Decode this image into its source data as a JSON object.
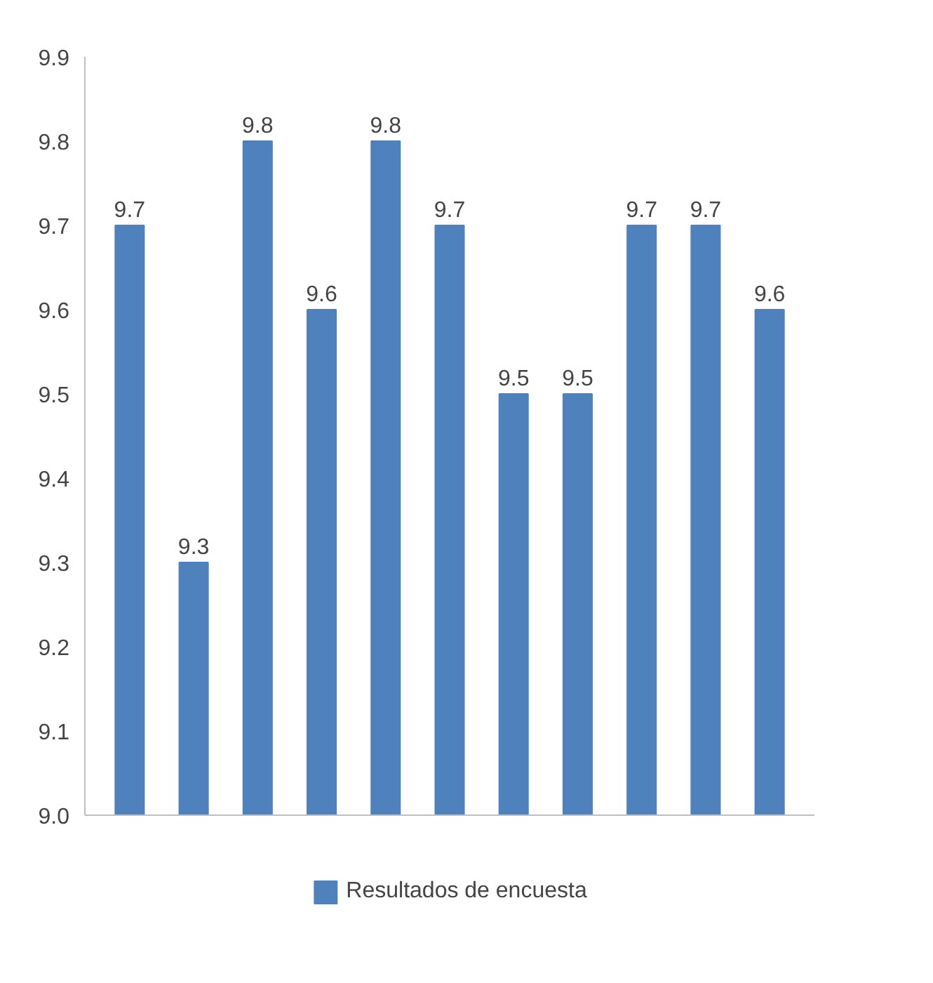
{
  "chart_data": {
    "type": "bar",
    "categories": [
      null,
      null,
      null,
      null,
      null,
      null,
      null,
      null,
      null,
      null,
      null
    ],
    "series": [
      {
        "name": "Resultados de encuesta",
        "color": "#4f81bd",
        "values": [
          9.7,
          9.3,
          9.8,
          9.6,
          9.8,
          9.7,
          9.5,
          9.5,
          9.7,
          9.7,
          9.6
        ]
      }
    ],
    "ylim": [
      9.0,
      9.9
    ],
    "yticks": [
      "9.0",
      "9.1",
      "9.2",
      "9.3",
      "9.4",
      "9.5",
      "9.6",
      "9.7",
      "9.8",
      "9.9"
    ],
    "data_labels": true,
    "grid": false,
    "legend": "bottom"
  }
}
